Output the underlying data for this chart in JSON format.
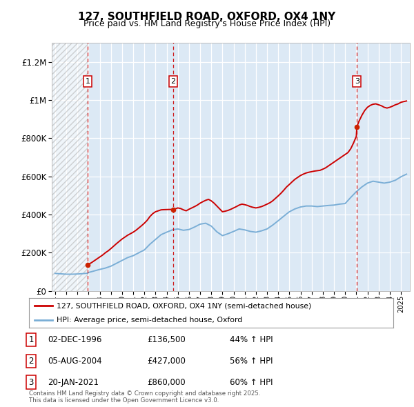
{
  "title": "127, SOUTHFIELD ROAD, OXFORD, OX4 1NY",
  "subtitle": "Price paid vs. HM Land Registry's House Price Index (HPI)",
  "ylim": [
    0,
    1300000
  ],
  "xlim_start": 1993.7,
  "xlim_end": 2025.8,
  "yticks": [
    0,
    200000,
    400000,
    600000,
    800000,
    1000000,
    1200000
  ],
  "background_color": "#dce9f5",
  "red_line_color": "#cc0000",
  "blue_line_color": "#7aaed6",
  "legend_label_red": "127, SOUTHFIELD ROAD, OXFORD, OX4 1NY (semi-detached house)",
  "legend_label_blue": "HPI: Average price, semi-detached house, Oxford",
  "footer": "Contains HM Land Registry data © Crown copyright and database right 2025.\nThis data is licensed under the Open Government Licence v3.0.",
  "transactions": [
    {
      "num": 1,
      "date": "02-DEC-1996",
      "year": 1996.92,
      "price": 136500,
      "pct": "44%",
      "dir": "↑"
    },
    {
      "num": 2,
      "date": "05-AUG-2004",
      "year": 2004.59,
      "price": 427000,
      "pct": "56%",
      "dir": "↑"
    },
    {
      "num": 3,
      "date": "20-JAN-2021",
      "year": 2021.05,
      "price": 860000,
      "pct": "60%",
      "dir": "↑"
    }
  ],
  "hpi_years": [
    1994.0,
    1994.5,
    1995.0,
    1995.5,
    1996.0,
    1996.5,
    1996.92,
    1997.0,
    1997.5,
    1998.0,
    1998.5,
    1999.0,
    1999.5,
    2000.0,
    2000.5,
    2001.0,
    2001.5,
    2002.0,
    2002.5,
    2003.0,
    2003.5,
    2004.0,
    2004.5,
    2005.0,
    2005.5,
    2006.0,
    2006.5,
    2007.0,
    2007.5,
    2008.0,
    2008.5,
    2009.0,
    2009.5,
    2010.0,
    2010.5,
    2011.0,
    2011.5,
    2012.0,
    2012.5,
    2013.0,
    2013.5,
    2014.0,
    2014.5,
    2015.0,
    2015.5,
    2016.0,
    2016.5,
    2017.0,
    2017.5,
    2018.0,
    2018.5,
    2019.0,
    2019.5,
    2020.0,
    2020.5,
    2021.0,
    2021.5,
    2022.0,
    2022.5,
    2023.0,
    2023.5,
    2024.0,
    2024.5,
    2025.0,
    2025.5
  ],
  "hpi_values": [
    92000,
    90000,
    88000,
    88000,
    89000,
    91000,
    93000,
    97000,
    105000,
    113000,
    120000,
    130000,
    145000,
    160000,
    175000,
    185000,
    200000,
    215000,
    245000,
    270000,
    295000,
    308000,
    320000,
    325000,
    318000,
    322000,
    335000,
    350000,
    355000,
    340000,
    310000,
    290000,
    300000,
    312000,
    325000,
    320000,
    312000,
    308000,
    315000,
    325000,
    345000,
    368000,
    392000,
    415000,
    430000,
    440000,
    445000,
    445000,
    442000,
    445000,
    448000,
    450000,
    455000,
    458000,
    490000,
    520000,
    545000,
    565000,
    575000,
    570000,
    565000,
    570000,
    580000,
    598000,
    612000
  ],
  "red_years": [
    1996.92,
    1997.0,
    1997.25,
    1997.5,
    1997.75,
    1998.0,
    1998.25,
    1998.5,
    1998.75,
    1999.0,
    1999.25,
    1999.5,
    1999.75,
    2000.0,
    2000.25,
    2000.5,
    2000.75,
    2001.0,
    2001.25,
    2001.5,
    2001.75,
    2002.0,
    2002.25,
    2002.5,
    2002.75,
    2003.0,
    2003.25,
    2003.5,
    2003.75,
    2004.0,
    2004.25,
    2004.5,
    2004.59,
    2004.75,
    2005.0,
    2005.25,
    2005.5,
    2005.75,
    2006.0,
    2006.25,
    2006.5,
    2006.75,
    2007.0,
    2007.25,
    2007.5,
    2007.75,
    2008.0,
    2008.25,
    2008.5,
    2008.75,
    2009.0,
    2009.25,
    2009.5,
    2009.75,
    2010.0,
    2010.25,
    2010.5,
    2010.75,
    2011.0,
    2011.25,
    2011.5,
    2011.75,
    2012.0,
    2012.25,
    2012.5,
    2012.75,
    2013.0,
    2013.25,
    2013.5,
    2013.75,
    2014.0,
    2014.25,
    2014.5,
    2014.75,
    2015.0,
    2015.25,
    2015.5,
    2015.75,
    2016.0,
    2016.25,
    2016.5,
    2016.75,
    2017.0,
    2017.25,
    2017.5,
    2017.75,
    2018.0,
    2018.25,
    2018.5,
    2018.75,
    2019.0,
    2019.25,
    2019.5,
    2019.75,
    2020.0,
    2020.25,
    2020.5,
    2020.75,
    2021.0,
    2021.05,
    2021.25,
    2021.5,
    2021.75,
    2022.0,
    2022.25,
    2022.5,
    2022.75,
    2023.0,
    2023.25,
    2023.5,
    2023.75,
    2024.0,
    2024.25,
    2024.5,
    2024.75,
    2025.0,
    2025.25,
    2025.5
  ],
  "red_values": [
    136500,
    140000,
    148000,
    158000,
    168000,
    178000,
    188000,
    200000,
    210000,
    222000,
    235000,
    248000,
    260000,
    272000,
    282000,
    292000,
    300000,
    308000,
    318000,
    330000,
    342000,
    355000,
    370000,
    390000,
    405000,
    415000,
    420000,
    425000,
    426000,
    426500,
    427000,
    427000,
    427000,
    430000,
    435000,
    432000,
    425000,
    420000,
    428000,
    435000,
    442000,
    450000,
    460000,
    468000,
    475000,
    480000,
    472000,
    460000,
    445000,
    430000,
    415000,
    418000,
    422000,
    428000,
    435000,
    442000,
    450000,
    455000,
    452000,
    448000,
    442000,
    438000,
    435000,
    438000,
    442000,
    448000,
    455000,
    462000,
    472000,
    485000,
    498000,
    512000,
    528000,
    545000,
    558000,
    572000,
    585000,
    595000,
    605000,
    612000,
    618000,
    622000,
    625000,
    628000,
    630000,
    632000,
    638000,
    645000,
    655000,
    665000,
    675000,
    685000,
    695000,
    705000,
    715000,
    725000,
    745000,
    775000,
    810000,
    860000,
    890000,
    920000,
    945000,
    962000,
    972000,
    978000,
    980000,
    975000,
    970000,
    962000,
    958000,
    962000,
    968000,
    975000,
    980000,
    988000,
    992000,
    995000
  ]
}
